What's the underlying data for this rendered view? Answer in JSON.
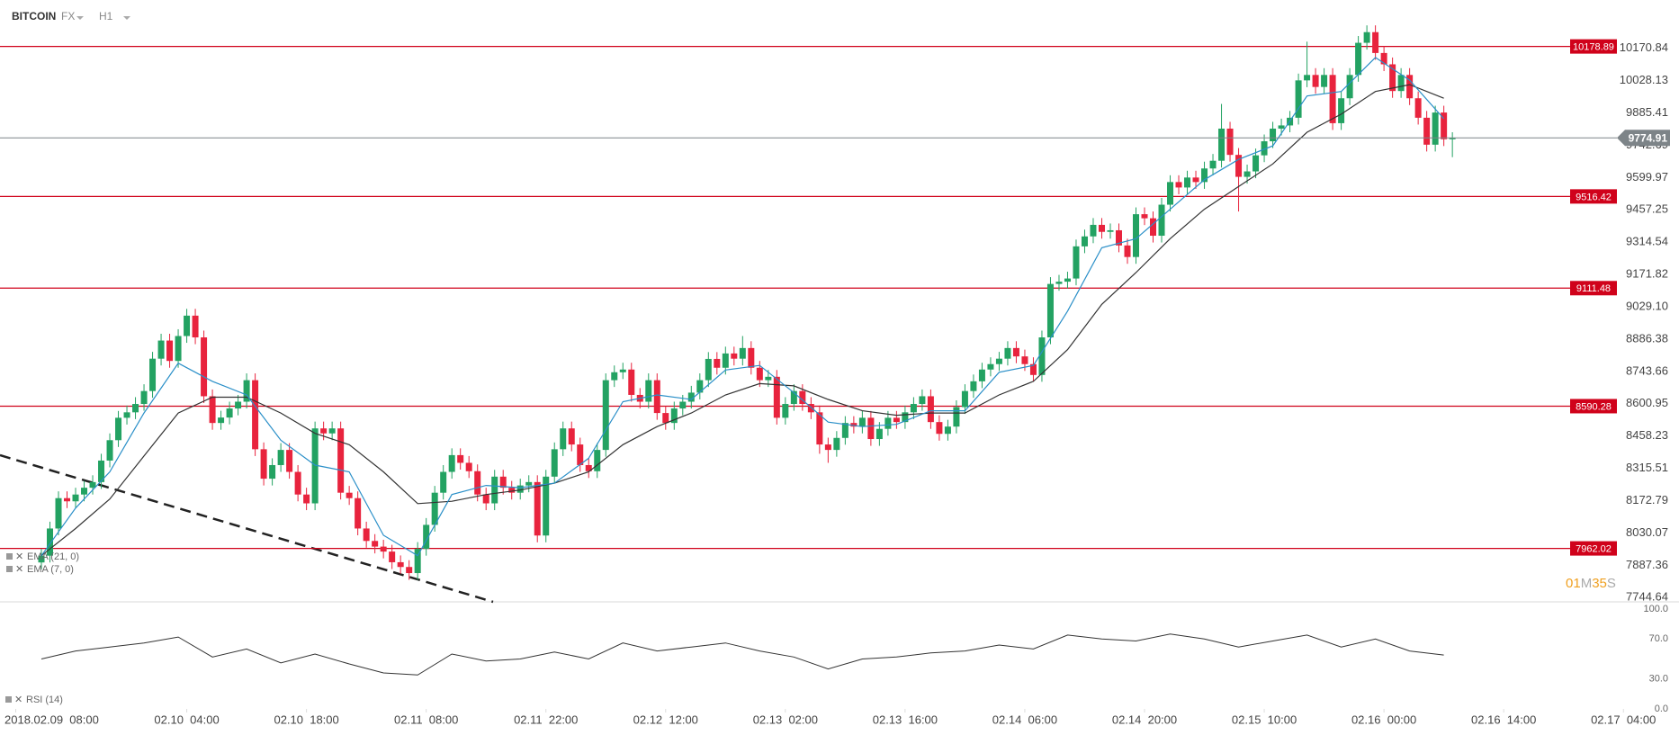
{
  "header": {
    "symbol": "BITCOIN",
    "market": "FX",
    "timeframe": "H1"
  },
  "chart_data": [
    {
      "type": "candlestick",
      "x": [
        3,
        4,
        5,
        6,
        7,
        8,
        9,
        10,
        11,
        12,
        13,
        14,
        15,
        16,
        17,
        18,
        19,
        20,
        21,
        22,
        23,
        24,
        25,
        26,
        27,
        28,
        29,
        30,
        31,
        32,
        33,
        34,
        35,
        36,
        37,
        38,
        39,
        40,
        41,
        42,
        43,
        44,
        45,
        46,
        47,
        48,
        49,
        50,
        51,
        52,
        53,
        54,
        55,
        56,
        57,
        58,
        59,
        60,
        61,
        62,
        63,
        64,
        65,
        66,
        67,
        68,
        69,
        70,
        71,
        72,
        73,
        74,
        75,
        76,
        77,
        78,
        79,
        80,
        81,
        82,
        83,
        84,
        85,
        86,
        87,
        88,
        89,
        90,
        91,
        92,
        93,
        94,
        95,
        96,
        97,
        98,
        99,
        100,
        101,
        102,
        103,
        104,
        105,
        106,
        107,
        108,
        109,
        110,
        111,
        112,
        113,
        114,
        115,
        116,
        117,
        118,
        119,
        120,
        121,
        122,
        123,
        124,
        125,
        126,
        127,
        128,
        129,
        130,
        131,
        132,
        133,
        134,
        135,
        136,
        137,
        138,
        139,
        140,
        141,
        142,
        143,
        144,
        145,
        146,
        147,
        148,
        149,
        150,
        151,
        152,
        153,
        154,
        155,
        156,
        157,
        158,
        159,
        160,
        161,
        162,
        163,
        164,
        165,
        166,
        167,
        168
      ],
      "open": [
        7900,
        7930,
        8050,
        8184,
        8170,
        8200,
        8230,
        8255,
        8350,
        8440,
        8539,
        8563,
        8600,
        8657,
        8800,
        8880,
        8790,
        8900,
        8990,
        8894,
        8634,
        8516,
        8540,
        8580,
        8610,
        8705,
        8400,
        8270,
        8330,
        8397,
        8300,
        8200,
        8161,
        8492,
        8470,
        8492,
        8208,
        8184,
        8050,
        7995,
        7970,
        7948,
        7901,
        7880,
        7853,
        7960,
        8066,
        8208,
        8300,
        8374,
        8340,
        8303,
        8200,
        8161,
        8279,
        8230,
        8208,
        8240,
        8255,
        8019,
        8279,
        8400,
        8492,
        8421,
        8330,
        8303,
        8397,
        8705,
        8740,
        8752,
        8640,
        8610,
        8705,
        8560,
        8516,
        8580,
        8610,
        8650,
        8705,
        8799,
        8760,
        8823,
        8800,
        8847,
        8760,
        8705,
        8720,
        8539,
        8600,
        8657,
        8600,
        8563,
        8421,
        8397,
        8450,
        8516,
        8500,
        8539,
        8445,
        8490,
        8539,
        8520,
        8563,
        8600,
        8634,
        8520,
        8468,
        8500,
        8586,
        8657,
        8700,
        8752,
        8776,
        8800,
        8847,
        8810,
        8776,
        8728,
        8894,
        9130,
        9140,
        9154,
        9296,
        9340,
        9391,
        9360,
        9367,
        9300,
        9249,
        9438,
        9420,
        9343,
        9480,
        9580,
        9556,
        9600,
        9580,
        9640,
        9674,
        9816,
        9700,
        9603,
        9627,
        9698,
        9760,
        9816,
        9830,
        9864,
        10029,
        10053,
        10000,
        10053,
        9840,
        9950,
        10053,
        10195,
        10242,
        10150,
        10100,
        9982,
        10053,
        9950,
        9864,
        9745,
        9887,
        9769
      ],
      "high": [
        7960,
        8080,
        8214,
        8214,
        8230,
        8260,
        8285,
        8380,
        8470,
        8569,
        8593,
        8630,
        8687,
        8830,
        8910,
        8910,
        8930,
        9020,
        9020,
        8924,
        8664,
        8570,
        8610,
        8640,
        8735,
        8735,
        8430,
        8360,
        8427,
        8427,
        8330,
        8230,
        8522,
        8522,
        8522,
        8522,
        8238,
        8214,
        8080,
        8025,
        8000,
        7978,
        7931,
        7910,
        7990,
        8096,
        8238,
        8330,
        8404,
        8404,
        8370,
        8333,
        8230,
        8309,
        8309,
        8260,
        8270,
        8285,
        8285,
        8309,
        8430,
        8522,
        8522,
        8451,
        8360,
        8427,
        8735,
        8770,
        8782,
        8782,
        8670,
        8735,
        8735,
        8590,
        8610,
        8640,
        8680,
        8735,
        8829,
        8829,
        8853,
        8853,
        8900,
        8877,
        8790,
        8750,
        8750,
        8630,
        8687,
        8687,
        8630,
        8593,
        8451,
        8480,
        8546,
        8546,
        8569,
        8569,
        8520,
        8569,
        8569,
        8593,
        8630,
        8664,
        8664,
        8550,
        8530,
        8616,
        8687,
        8730,
        8782,
        8806,
        8830,
        8877,
        8877,
        8840,
        8806,
        8924,
        9160,
        9170,
        9184,
        9326,
        9370,
        9421,
        9421,
        9397,
        9397,
        9330,
        9468,
        9468,
        9450,
        9510,
        9610,
        9610,
        9630,
        9630,
        9670,
        9704,
        9925,
        9846,
        9730,
        9657,
        9728,
        9790,
        9846,
        9860,
        9894,
        10059,
        10200,
        10083,
        10083,
        10083,
        9980,
        10083,
        10225,
        10272,
        10272,
        10180,
        10130,
        10083,
        10083,
        9980,
        9894,
        9917,
        9917,
        9800
      ],
      "low": [
        7870,
        7900,
        8020,
        8140,
        8140,
        8170,
        8200,
        8225,
        8320,
        8410,
        8509,
        8533,
        8570,
        8627,
        8770,
        8760,
        8760,
        8870,
        8864,
        8604,
        8486,
        8486,
        8510,
        8550,
        8580,
        8370,
        8240,
        8240,
        8300,
        8270,
        8170,
        8131,
        8131,
        8440,
        8440,
        8178,
        8154,
        8020,
        7965,
        7940,
        7918,
        7871,
        7850,
        7823,
        7823,
        7930,
        8036,
        8178,
        8270,
        8310,
        8273,
        8170,
        8131,
        8131,
        8200,
        8178,
        8178,
        8210,
        7989,
        7989,
        8249,
        8370,
        8391,
        8300,
        8273,
        8273,
        8367,
        8675,
        8710,
        8610,
        8580,
        8580,
        8530,
        8486,
        8486,
        8550,
        8580,
        8620,
        8675,
        8730,
        8730,
        8770,
        8770,
        8730,
        8675,
        8675,
        8509,
        8509,
        8570,
        8570,
        8533,
        8380,
        8340,
        8367,
        8420,
        8470,
        8470,
        8415,
        8415,
        8460,
        8490,
        8490,
        8533,
        8570,
        8490,
        8438,
        8438,
        8470,
        8556,
        8627,
        8670,
        8722,
        8746,
        8770,
        8780,
        8746,
        8698,
        8698,
        8864,
        9100,
        9110,
        9124,
        9266,
        9310,
        9330,
        9330,
        9270,
        9219,
        9219,
        9390,
        9313,
        9313,
        9450,
        9526,
        9526,
        9550,
        9550,
        9610,
        9644,
        9670,
        9450,
        9573,
        9597,
        9668,
        9730,
        9786,
        9800,
        9834,
        9999,
        9970,
        9970,
        9810,
        9810,
        9920,
        10023,
        10165,
        10120,
        10070,
        9952,
        9952,
        9920,
        9834,
        9715,
        9715,
        9739,
        9690
      ],
      "close": [
        7930,
        8050,
        8184,
        8170,
        8200,
        8230,
        8255,
        8350,
        8440,
        8539,
        8563,
        8600,
        8657,
        8800,
        8880,
        8790,
        8900,
        8990,
        8894,
        8634,
        8516,
        8540,
        8580,
        8610,
        8705,
        8400,
        8270,
        8330,
        8397,
        8300,
        8200,
        8161,
        8492,
        8470,
        8492,
        8208,
        8184,
        8050,
        7995,
        7970,
        7948,
        7901,
        7880,
        7853,
        7960,
        8066,
        8208,
        8300,
        8374,
        8340,
        8303,
        8200,
        8161,
        8279,
        8230,
        8208,
        8240,
        8255,
        8019,
        8279,
        8400,
        8492,
        8421,
        8330,
        8303,
        8397,
        8705,
        8740,
        8752,
        8640,
        8610,
        8705,
        8560,
        8516,
        8580,
        8610,
        8650,
        8705,
        8799,
        8760,
        8823,
        8800,
        8847,
        8760,
        8705,
        8720,
        8539,
        8600,
        8657,
        8600,
        8563,
        8421,
        8397,
        8450,
        8516,
        8500,
        8539,
        8445,
        8490,
        8539,
        8520,
        8563,
        8600,
        8634,
        8520,
        8468,
        8500,
        8586,
        8657,
        8700,
        8752,
        8776,
        8800,
        8847,
        8810,
        8776,
        8728,
        8894,
        9130,
        9140,
        9154,
        9296,
        9340,
        9391,
        9360,
        9367,
        9300,
        9249,
        9438,
        9420,
        9343,
        9480,
        9580,
        9556,
        9600,
        9580,
        9640,
        9674,
        9816,
        9700,
        9603,
        9627,
        9698,
        9760,
        9816,
        9830,
        9864,
        10029,
        10053,
        10000,
        10053,
        9840,
        9950,
        10053,
        10195,
        10242,
        10150,
        10100,
        9982,
        10053,
        9950,
        9864,
        9745,
        9887,
        9769,
        9774.91
      ],
      "up_color": "#23a262",
      "down_color": "#e8233d",
      "xlim": [
        -1.84,
        194.5
      ],
      "xticks": [
        {
          "value": 0,
          "label": "2018.02.09  08:00"
        },
        {
          "value": 20,
          "label": "02.10  04:00"
        },
        {
          "value": 34,
          "label": "02.10  18:00"
        },
        {
          "value": 48,
          "label": "02.11  08:00"
        },
        {
          "value": 62,
          "label": "02.11  22:00"
        },
        {
          "value": 76,
          "label": "02.12  12:00"
        },
        {
          "value": 90,
          "label": "02.13  02:00"
        },
        {
          "value": 104,
          "label": "02.13  16:00"
        },
        {
          "value": 118,
          "label": "02.14  06:00"
        },
        {
          "value": 132,
          "label": "02.14  20:00"
        },
        {
          "value": 146,
          "label": "02.15  10:00"
        },
        {
          "value": 160,
          "label": "02.16  00:00"
        },
        {
          "value": 174,
          "label": "02.16  14:00"
        },
        {
          "value": 188,
          "label": "02.17  04:00"
        }
      ],
      "ylim": [
        7726,
        10384
      ],
      "yticks": [
        10170.84,
        10028.13,
        9885.41,
        9742.69,
        9599.97,
        9457.25,
        9314.54,
        9171.82,
        {
          "value": 9029.1,
          "label": "9029.10"
        },
        8886.38,
        8743.66,
        8600.95,
        8458.23,
        8315.51,
        8172.79,
        8030.07,
        7887.36,
        7744.64
      ],
      "lines": [
        {
          "name": "EMA (21, 0)",
          "color": "#333333",
          "x": [
            3,
            7,
            11,
            15,
            19,
            23,
            27,
            31,
            35,
            39,
            43,
            47,
            51,
            55,
            59,
            63,
            67,
            71,
            75,
            79,
            83,
            87,
            91,
            95,
            99,
            103,
            107,
            111,
            115,
            119,
            123,
            127,
            131,
            135,
            139,
            143,
            147,
            151,
            155,
            159,
            163,
            167
          ],
          "values": [
            7930,
            8050,
            8180,
            8370,
            8560,
            8630,
            8630,
            8560,
            8470,
            8420,
            8300,
            8160,
            8170,
            8200,
            8220,
            8250,
            8300,
            8420,
            8500,
            8560,
            8640,
            8690,
            8680,
            8620,
            8570,
            8550,
            8560,
            8560,
            8640,
            8700,
            8840,
            9040,
            9180,
            9330,
            9460,
            9560,
            9660,
            9800,
            9880,
            9980,
            10010,
            9950
          ]
        },
        {
          "name": "EMA (7, 0)",
          "color": "#2a8fc8",
          "x": [
            3,
            7,
            11,
            15,
            19,
            23,
            27,
            31,
            35,
            39,
            43,
            47,
            51,
            55,
            59,
            63,
            67,
            71,
            75,
            79,
            83,
            87,
            91,
            95,
            99,
            103,
            107,
            111,
            115,
            119,
            123,
            127,
            131,
            135,
            139,
            143,
            147,
            151,
            155,
            159,
            163,
            167
          ],
          "values": [
            7930,
            8140,
            8300,
            8560,
            8780,
            8700,
            8640,
            8440,
            8330,
            8300,
            8020,
            7930,
            8200,
            8240,
            8230,
            8250,
            8360,
            8610,
            8640,
            8620,
            8750,
            8770,
            8650,
            8520,
            8500,
            8510,
            8570,
            8570,
            8740,
            8770,
            9010,
            9290,
            9330,
            9460,
            9590,
            9680,
            9740,
            9960,
            9980,
            10130,
            10030,
            9860
          ]
        }
      ],
      "levels": [
        {
          "value": 10178.89,
          "color": "#d0021b"
        },
        {
          "value": 9516.42,
          "color": "#d0021b"
        },
        {
          "value": 9111.48,
          "color": "#d0021b"
        },
        {
          "value": 8590.28,
          "color": "#d0021b"
        },
        {
          "value": 7962.02,
          "color": "#d0021b"
        }
      ],
      "last_price": 9774.91,
      "last_price_color": "#7d8488",
      "countdown": {
        "minutes": "01",
        "minutes_unit": "M",
        "seconds": "35",
        "seconds_unit": "S"
      }
    },
    {
      "type": "line",
      "name": "RSI (14)",
      "color": "#333333",
      "x": [
        3,
        7,
        11,
        15,
        19,
        23,
        27,
        31,
        35,
        39,
        43,
        47,
        51,
        55,
        59,
        63,
        67,
        71,
        75,
        79,
        83,
        87,
        91,
        95,
        99,
        103,
        107,
        111,
        115,
        119,
        123,
        127,
        131,
        135,
        139,
        143,
        147,
        151,
        155,
        159,
        163,
        167
      ],
      "values": [
        50,
        58,
        62,
        66,
        72,
        52,
        60,
        46,
        55,
        45,
        36,
        34,
        55,
        48,
        50,
        57,
        50,
        66,
        58,
        62,
        66,
        58,
        52,
        40,
        50,
        52,
        56,
        58,
        64,
        60,
        74,
        70,
        68,
        75,
        70,
        62,
        68,
        74,
        62,
        70,
        58,
        54
      ],
      "ylim": [
        0,
        100
      ],
      "yticks": [
        {
          "value": 100,
          "label": "100.0"
        },
        {
          "value": 70,
          "label": "70.0"
        },
        {
          "value": 30,
          "label": "30.0"
        },
        {
          "value": 0,
          "label": "0.0"
        }
      ]
    }
  ]
}
